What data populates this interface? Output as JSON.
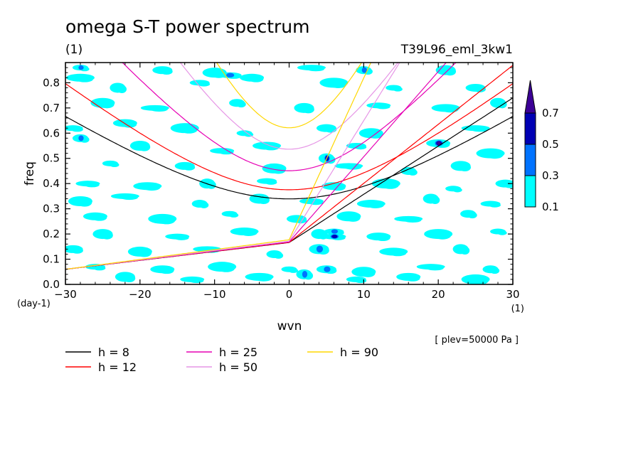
{
  "chart_data": {
    "type": "heatmap",
    "title": "omega S-T power spectrum",
    "subtitle_left": "(1)",
    "subtitle_right": "T39L96_eml_3kw1",
    "xlabel": "wvn",
    "ylabel": "freq",
    "x_units": "(1)",
    "y_units": "(day-1)",
    "xlim": [
      -30,
      30
    ],
    "ylim": [
      0,
      0.88
    ],
    "x_ticks": [
      -30,
      -20,
      -10,
      0,
      10,
      20,
      30
    ],
    "x_tick_labels": [
      "−30",
      "−20",
      "−10",
      "0",
      "10",
      "20",
      "30"
    ],
    "y_ticks": [
      0.0,
      0.1,
      0.2,
      0.3,
      0.4,
      0.5,
      0.6,
      0.7,
      0.8
    ],
    "y_tick_labels": [
      "0.0",
      "0.1",
      "0.2",
      "0.3",
      "0.4",
      "0.5",
      "0.6",
      "0.7",
      "0.8"
    ],
    "annotation": "[ plev=50000 Pa ]",
    "colorbar": {
      "levels": [
        "0.1",
        "0.3",
        "0.5",
        "0.7"
      ],
      "colors": [
        "#00ffff",
        "#0073ff",
        "#0000b4",
        "#3c0096"
      ]
    },
    "dispersion_curves": [
      {
        "name": "h =  8",
        "h": 8,
        "color": "#000000"
      },
      {
        "name": "h = 12",
        "h": 12,
        "color": "#ff0000"
      },
      {
        "name": "h = 25",
        "h": 25,
        "color": "#e600b4"
      },
      {
        "name": "h = 50",
        "h": 50,
        "color": "#e696e6"
      },
      {
        "name": "h = 90",
        "h": 90,
        "color": "#ffd700"
      }
    ],
    "heat_blobs": [
      [
        -28,
        0.86,
        0.3
      ],
      [
        -17,
        0.85,
        0.1
      ],
      [
        -10,
        0.84,
        0.1
      ],
      [
        3,
        0.86,
        0.1
      ],
      [
        10,
        0.85,
        0.3
      ],
      [
        21,
        0.85,
        0.1
      ],
      [
        -8,
        0.83,
        0.3
      ],
      [
        -28,
        0.82,
        0.1
      ],
      [
        -23,
        0.78,
        0.1
      ],
      [
        -12,
        0.8,
        0.1
      ],
      [
        -5,
        0.82,
        0.1
      ],
      [
        6,
        0.8,
        0.1
      ],
      [
        14,
        0.78,
        0.1
      ],
      [
        25,
        0.78,
        0.1
      ],
      [
        -25,
        0.72,
        0.1
      ],
      [
        -18,
        0.7,
        0.1
      ],
      [
        -7,
        0.72,
        0.1
      ],
      [
        2,
        0.7,
        0.1
      ],
      [
        12,
        0.71,
        0.1
      ],
      [
        21,
        0.7,
        0.1
      ],
      [
        28,
        0.72,
        0.1
      ],
      [
        -29,
        0.62,
        0.1
      ],
      [
        -22,
        0.64,
        0.1
      ],
      [
        -14,
        0.62,
        0.1
      ],
      [
        -6,
        0.6,
        0.1
      ],
      [
        5,
        0.62,
        0.1
      ],
      [
        11,
        0.6,
        0.1
      ],
      [
        25,
        0.62,
        0.1
      ],
      [
        -28,
        0.58,
        0.3
      ],
      [
        -20,
        0.55,
        0.1
      ],
      [
        -9,
        0.53,
        0.1
      ],
      [
        -3,
        0.55,
        0.1
      ],
      [
        5,
        0.5,
        0.5
      ],
      [
        9,
        0.55,
        0.1
      ],
      [
        20,
        0.56,
        0.7
      ],
      [
        27,
        0.52,
        0.1
      ],
      [
        -24,
        0.48,
        0.1
      ],
      [
        -14,
        0.47,
        0.1
      ],
      [
        -2,
        0.46,
        0.1
      ],
      [
        8,
        0.47,
        0.1
      ],
      [
        16,
        0.45,
        0.1
      ],
      [
        23,
        0.47,
        0.1
      ],
      [
        -27,
        0.4,
        0.1
      ],
      [
        -19,
        0.39,
        0.1
      ],
      [
        -11,
        0.4,
        0.1
      ],
      [
        -3,
        0.41,
        0.1
      ],
      [
        6,
        0.39,
        0.1
      ],
      [
        13,
        0.4,
        0.1
      ],
      [
        22,
        0.38,
        0.1
      ],
      [
        29,
        0.4,
        0.1
      ],
      [
        -28,
        0.33,
        0.1
      ],
      [
        -22,
        0.35,
        0.1
      ],
      [
        -12,
        0.32,
        0.1
      ],
      [
        -4,
        0.34,
        0.1
      ],
      [
        3,
        0.33,
        0.1
      ],
      [
        11,
        0.32,
        0.1
      ],
      [
        19,
        0.34,
        0.1
      ],
      [
        27,
        0.32,
        0.1
      ],
      [
        -26,
        0.27,
        0.1
      ],
      [
        -17,
        0.26,
        0.1
      ],
      [
        -8,
        0.28,
        0.1
      ],
      [
        1,
        0.26,
        0.1
      ],
      [
        8,
        0.27,
        0.1
      ],
      [
        16,
        0.26,
        0.1
      ],
      [
        24,
        0.28,
        0.1
      ],
      [
        -25,
        0.2,
        0.1
      ],
      [
        -15,
        0.19,
        0.1
      ],
      [
        -6,
        0.21,
        0.1
      ],
      [
        4,
        0.2,
        0.1
      ],
      [
        6,
        0.21,
        0.3
      ],
      [
        12,
        0.19,
        0.1
      ],
      [
        20,
        0.2,
        0.1
      ],
      [
        28,
        0.21,
        0.1
      ],
      [
        -29,
        0.14,
        0.1
      ],
      [
        -20,
        0.13,
        0.1
      ],
      [
        -11,
        0.14,
        0.1
      ],
      [
        -2,
        0.12,
        0.1
      ],
      [
        4,
        0.14,
        0.3
      ],
      [
        6,
        0.19,
        0.5
      ],
      [
        14,
        0.13,
        0.1
      ],
      [
        23,
        0.14,
        0.1
      ],
      [
        -26,
        0.07,
        0.1
      ],
      [
        -17,
        0.06,
        0.1
      ],
      [
        -9,
        0.07,
        0.1
      ],
      [
        0,
        0.06,
        0.1
      ],
      [
        5,
        0.06,
        0.3
      ],
      [
        10,
        0.05,
        0.1
      ],
      [
        19,
        0.07,
        0.1
      ],
      [
        27,
        0.06,
        0.1
      ],
      [
        -22,
        0.03,
        0.1
      ],
      [
        -13,
        0.02,
        0.1
      ],
      [
        -4,
        0.03,
        0.1
      ],
      [
        2,
        0.04,
        0.3
      ],
      [
        9,
        0.02,
        0.1
      ],
      [
        16,
        0.03,
        0.1
      ],
      [
        25,
        0.02,
        0.1
      ]
    ]
  }
}
